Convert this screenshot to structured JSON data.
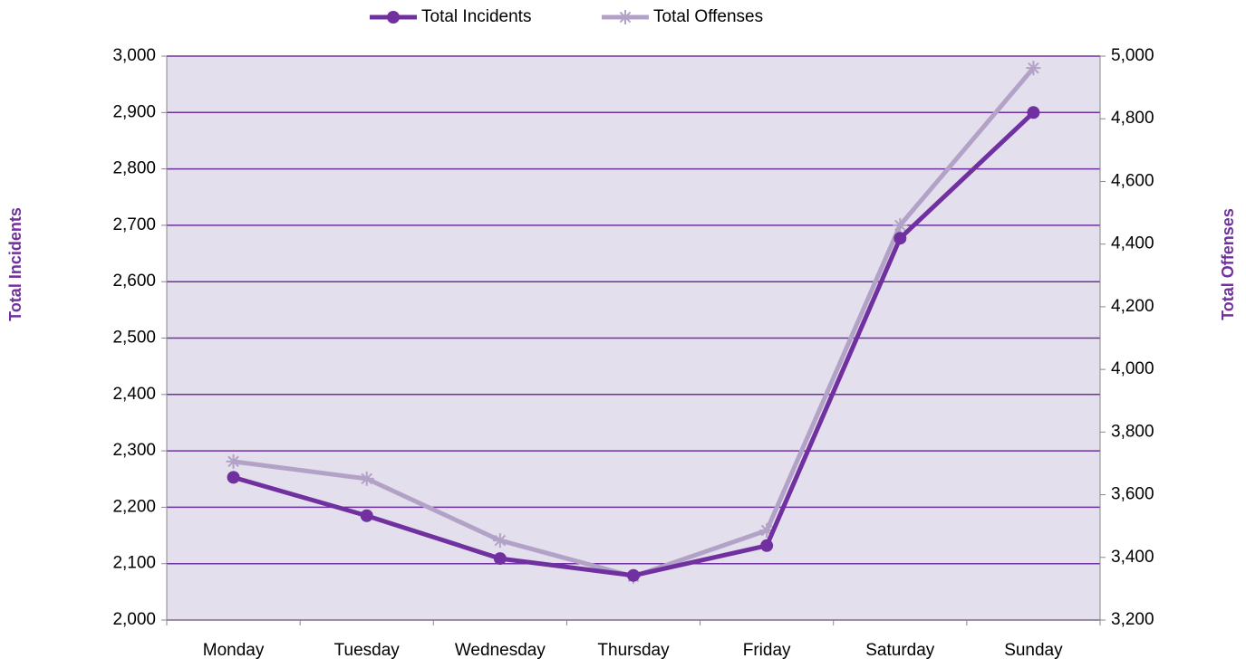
{
  "chart_data": {
    "type": "line",
    "categories": [
      "Monday",
      "Tuesday",
      "Wednesday",
      "Thursday",
      "Friday",
      "Saturday",
      "Sunday"
    ],
    "series": [
      {
        "name": "Total Incidents",
        "color": "#7030a0",
        "values": [
          2253,
          2185,
          2109,
          2079,
          2132,
          2677,
          2900
        ]
      },
      {
        "name": "Total Offenses",
        "color": "#b3a2c7",
        "axis": "y2",
        "values": [
          3706,
          3651,
          3454,
          3339,
          3486,
          4460,
          4962
        ]
      }
    ],
    "ylabel": "Total Incidents",
    "y2label": "Total Offenses",
    "ylim": [
      2000,
      3000
    ],
    "yticks": [
      {
        "value": 2000,
        "label": "2,000"
      },
      {
        "value": 2100,
        "label": "2,100"
      },
      {
        "value": 2200,
        "label": "2,200"
      },
      {
        "value": 2300,
        "label": "2,300"
      },
      {
        "value": 2400,
        "label": "2,400"
      },
      {
        "value": 2500,
        "label": "2,500"
      },
      {
        "value": 2600,
        "label": "2,600"
      },
      {
        "value": 2700,
        "label": "2,700"
      },
      {
        "value": 2800,
        "label": "2,800"
      },
      {
        "value": 2900,
        "label": "2,900"
      },
      {
        "value": 3000,
        "label": "3,000"
      }
    ],
    "y2lim": [
      3200,
      5000
    ],
    "y2ticks": [
      {
        "value": 3200,
        "label": "3,200"
      },
      {
        "value": 3400,
        "label": "3,400"
      },
      {
        "value": 3600,
        "label": "3,600"
      },
      {
        "value": 3800,
        "label": "3,800"
      },
      {
        "value": 4000,
        "label": "4,000"
      },
      {
        "value": 4200,
        "label": "4,200"
      },
      {
        "value": 4400,
        "label": "4,400"
      },
      {
        "value": 4600,
        "label": "4,600"
      },
      {
        "value": 4800,
        "label": "4,800"
      },
      {
        "value": 5000,
        "label": "5,000"
      }
    ],
    "grid": true,
    "legend": "top",
    "plot_background": "#e4dfec",
    "grid_color": "#7030a0"
  }
}
